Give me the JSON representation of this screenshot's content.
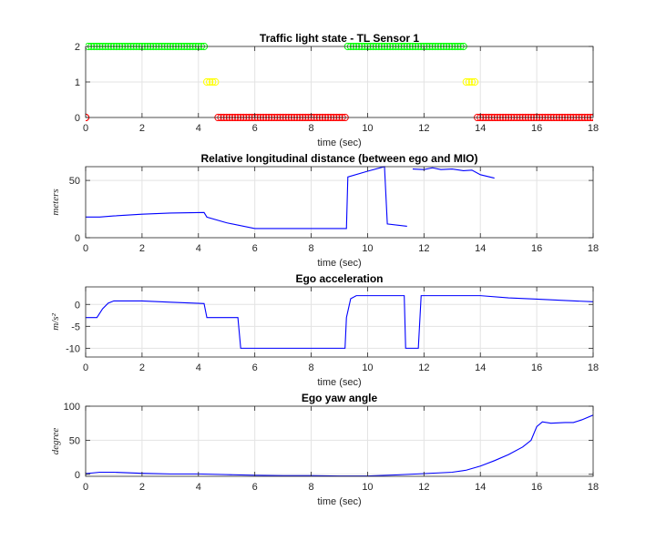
{
  "chart_data": [
    {
      "type": "scatter",
      "title": "Traffic light state - TL Sensor 1",
      "xlabel": "time (sec)",
      "ylabel": "",
      "xlim": [
        0,
        18
      ],
      "ylim": [
        0,
        2
      ],
      "xticks": [
        0,
        2,
        4,
        6,
        8,
        10,
        12,
        14,
        16,
        18
      ],
      "yticks": [
        0,
        1,
        2
      ],
      "grid": true,
      "marker": "open-circle",
      "series": [
        {
          "color": "#00ff00",
          "points": [
            [
              0.1,
              2
            ],
            [
              4.2,
              2
            ],
            [
              9.3,
              2
            ],
            [
              13.4,
              2
            ]
          ],
          "segments": [
            [
              0.1,
              4.2
            ],
            [
              9.3,
              13.4
            ]
          ],
          "y": 2
        },
        {
          "color": "#ffff00",
          "points": [
            [
              4.3,
              1
            ],
            [
              4.6,
              1
            ],
            [
              13.5,
              1
            ],
            [
              13.8,
              1
            ]
          ],
          "segments": [
            [
              4.3,
              4.6
            ],
            [
              13.5,
              13.8
            ]
          ],
          "y": 1
        },
        {
          "color": "#ff0000",
          "points": [
            [
              0,
              0
            ],
            [
              4.7,
              0
            ],
            [
              9.2,
              0
            ],
            [
              13.9,
              0
            ],
            [
              18,
              0
            ]
          ],
          "segments": [
            [
              0,
              0
            ],
            [
              4.7,
              9.2
            ],
            [
              13.9,
              18
            ]
          ],
          "y": 0
        }
      ]
    },
    {
      "type": "line",
      "title": "Relative longitudinal distance (between ego and MIO)",
      "xlabel": "time (sec)",
      "ylabel": "meters",
      "xlim": [
        0,
        18
      ],
      "ylim": [
        0,
        62
      ],
      "xticks": [
        0,
        2,
        4,
        6,
        8,
        10,
        12,
        14,
        16,
        18
      ],
      "yticks": [
        0,
        50
      ],
      "grid": true,
      "series": [
        {
          "color": "#0000ff",
          "segments": [
            [
              [
                0,
                18
              ],
              [
                0.5,
                18
              ],
              [
                1,
                19
              ],
              [
                2,
                20.5
              ],
              [
                3,
                21.5
              ],
              [
                4.2,
                22
              ],
              [
                4.3,
                18
              ],
              [
                5,
                13
              ],
              [
                6,
                8
              ],
              [
                7,
                8
              ],
              [
                8,
                8
              ],
              [
                9,
                8
              ],
              [
                9.25,
                8
              ],
              [
                9.3,
                53
              ],
              [
                10,
                58
              ],
              [
                10.6,
                62
              ],
              [
                10.7,
                12
              ],
              [
                11.4,
                10
              ]
            ],
            [
              [
                11.6,
                60
              ],
              [
                12,
                59.5
              ],
              [
                12.3,
                61
              ],
              [
                12.6,
                59.5
              ],
              [
                13,
                60
              ],
              [
                13.4,
                58.5
              ],
              [
                13.7,
                59
              ],
              [
                14,
                55
              ],
              [
                14.5,
                52
              ]
            ]
          ]
        }
      ]
    },
    {
      "type": "line",
      "title": "Ego acceleration",
      "xlabel": "time (sec)",
      "ylabel": "m/s²",
      "xlim": [
        0,
        18
      ],
      "ylim": [
        -12,
        4
      ],
      "xticks": [
        0,
        2,
        4,
        6,
        8,
        10,
        12,
        14,
        16,
        18
      ],
      "yticks": [
        -10,
        -5,
        0
      ],
      "grid": true,
      "series": [
        {
          "color": "#0000ff",
          "segments": [
            [
              [
                0,
                -3
              ],
              [
                0.4,
                -3
              ],
              [
                0.6,
                -1
              ],
              [
                0.8,
                0.3
              ],
              [
                1,
                0.8
              ],
              [
                2,
                0.8
              ],
              [
                3,
                0.5
              ],
              [
                4.2,
                0.2
              ],
              [
                4.3,
                -3
              ],
              [
                5.4,
                -3
              ],
              [
                5.5,
                -10
              ],
              [
                9.2,
                -10
              ],
              [
                9.25,
                -3
              ],
              [
                9.4,
                1.3
              ],
              [
                9.6,
                2
              ],
              [
                11.3,
                2
              ],
              [
                11.35,
                -10
              ],
              [
                11.8,
                -10
              ],
              [
                11.9,
                2
              ],
              [
                14,
                2
              ],
              [
                15,
                1.5
              ],
              [
                16,
                1.2
              ],
              [
                17,
                0.9
              ],
              [
                18,
                0.6
              ]
            ]
          ]
        }
      ]
    },
    {
      "type": "line",
      "title": "Ego yaw angle",
      "xlabel": "time (sec)",
      "ylabel": "degree",
      "xlim": [
        0,
        18
      ],
      "ylim": [
        -3,
        100
      ],
      "xticks": [
        0,
        2,
        4,
        6,
        8,
        10,
        12,
        14,
        16,
        18
      ],
      "yticks": [
        0,
        50,
        100
      ],
      "grid": true,
      "series": [
        {
          "color": "#0000ff",
          "segments": [
            [
              [
                0,
                1
              ],
              [
                0.5,
                3
              ],
              [
                1,
                3
              ],
              [
                2,
                1.5
              ],
              [
                3,
                0.5
              ],
              [
                4,
                0.5
              ],
              [
                5,
                -0.5
              ],
              [
                6,
                -1.5
              ],
              [
                7,
                -2
              ],
              [
                8,
                -2
              ],
              [
                9,
                -2.5
              ],
              [
                10,
                -2.5
              ],
              [
                11,
                -1
              ],
              [
                12,
                1
              ],
              [
                13,
                3
              ],
              [
                13.5,
                6
              ],
              [
                14,
                12
              ],
              [
                14.5,
                20
              ],
              [
                15,
                29
              ],
              [
                15.5,
                40
              ],
              [
                15.8,
                50
              ],
              [
                16,
                70
              ],
              [
                16.2,
                77
              ],
              [
                16.5,
                75
              ],
              [
                17,
                76
              ],
              [
                17.3,
                76
              ],
              [
                17.6,
                80
              ],
              [
                18,
                87
              ]
            ]
          ]
        }
      ]
    }
  ]
}
